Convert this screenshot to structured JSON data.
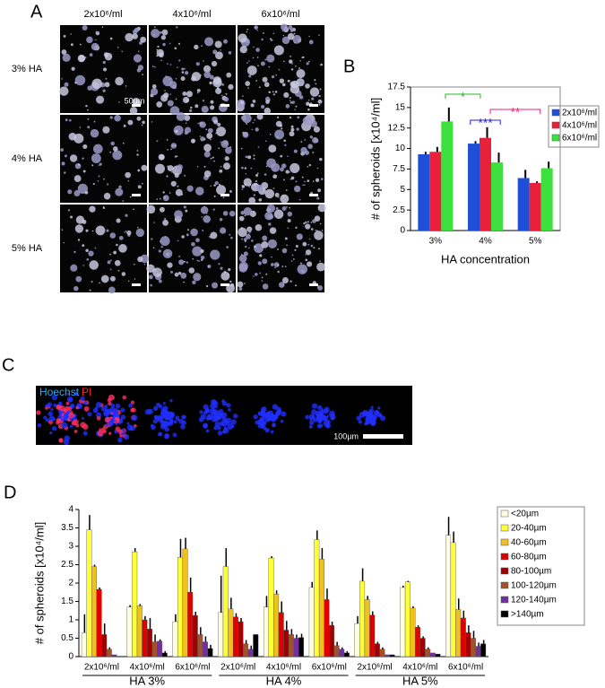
{
  "panel_a": {
    "label": "A",
    "columns": [
      "2x10⁶/ml",
      "4x10⁶/ml",
      "6x10⁶/ml"
    ],
    "rows": [
      "3% HA",
      "4% HA",
      "5% HA"
    ],
    "scale_bar": "50µm"
  },
  "panel_c": {
    "label": "C",
    "stains": [
      "Hoechst",
      "PI"
    ],
    "scale_bar": "100µm"
  },
  "chart_data": [
    {
      "type": "bar",
      "panel": "B",
      "ylabel": "# of spheroids [x10⁴/ml]",
      "xlabel": "HA concentration",
      "categories": [
        "3%",
        "4%",
        "5%"
      ],
      "series": [
        {
          "name": "2x10⁶/ml",
          "color": "#1f4fd8",
          "values": [
            9.3,
            10.6,
            6.4
          ],
          "errors": [
            0.3,
            0.3,
            1.0
          ]
        },
        {
          "name": "4x10⁶/ml",
          "color": "#e8203a",
          "values": [
            9.6,
            11.3,
            5.8
          ],
          "errors": [
            0.6,
            1.3,
            0.2
          ]
        },
        {
          "name": "6x10⁶/ml",
          "color": "#3ee03e",
          "values": [
            13.3,
            8.3,
            7.6
          ],
          "errors": [
            1.7,
            1.2,
            0.8
          ]
        }
      ],
      "ylim": [
        0,
        17.5
      ],
      "yticks": [
        0,
        2.5,
        5,
        7.5,
        10,
        12.5,
        15,
        17.5
      ],
      "annotations": [
        {
          "text": "*",
          "color": "#22bb22"
        },
        {
          "text": "***",
          "color": "#2222dd"
        },
        {
          "text": "**",
          "color": "#ee2277"
        }
      ]
    },
    {
      "type": "bar",
      "panel": "D",
      "ylabel": "# of spheroids [x10⁴/ml]",
      "categories": [
        "2x10⁶/ml",
        "4x10⁶/ml",
        "6x10⁶/ml",
        "2x10⁶/ml",
        "4x10⁶/ml",
        "6x10⁶/ml",
        "2x10⁶/ml",
        "4x10⁶/ml",
        "6x10⁶/ml"
      ],
      "groups": [
        "HA 3%",
        "HA 4%",
        "HA 5%"
      ],
      "series": [
        {
          "name": "<20µm",
          "color": "#fffde0",
          "values": [
            0.65,
            1.35,
            0.95,
            1.2,
            1.35,
            1.88,
            0.9,
            1.88,
            3.3
          ],
          "errors": [
            0.5,
            0.05,
            0.2,
            1.0,
            0.3,
            0.15,
            0.2,
            0.05,
            0.5
          ]
        },
        {
          "name": "20-40µm",
          "color": "#ffff33",
          "values": [
            3.45,
            2.85,
            2.7,
            2.45,
            2.68,
            3.18,
            2.05,
            2.03,
            3.1
          ],
          "errors": [
            0.4,
            0.1,
            0.5,
            0.5,
            0.05,
            0.25,
            0.35,
            0.03,
            0.3
          ]
        },
        {
          "name": "40-60µm",
          "color": "#f0c020",
          "values": [
            2.45,
            1.38,
            2.93,
            1.3,
            1.7,
            2.65,
            1.55,
            1.32,
            1.28
          ],
          "errors": [
            0.05,
            0.05,
            0.3,
            0.3,
            0.1,
            0.3,
            0.1,
            0.05,
            0.3
          ]
        },
        {
          "name": "60-80µm",
          "color": "#e00000",
          "values": [
            1.83,
            1.0,
            1.75,
            1.08,
            1.2,
            1.55,
            1.13,
            0.8,
            1.05
          ],
          "errors": [
            0.05,
            0.1,
            0.4,
            0.1,
            0.3,
            0.3,
            0.1,
            0.05,
            0.2
          ]
        },
        {
          "name": "80-100µm",
          "color": "#a00000",
          "values": [
            0.6,
            0.75,
            1.12,
            0.95,
            0.72,
            0.85,
            0.35,
            0.5,
            0.65
          ],
          "errors": [
            0.3,
            0.3,
            0.1,
            0.1,
            0.25,
            0.1,
            0.05,
            0.05,
            0.2
          ]
        },
        {
          "name": "100-120µm",
          "color": "#a0522d",
          "values": [
            0.2,
            0.4,
            0.6,
            0.35,
            0.6,
            0.3,
            0.2,
            0.2,
            0.5
          ],
          "errors": [
            0.05,
            0.2,
            0.2,
            0.1,
            0.15,
            0.1,
            0.05,
            0.05,
            0.2
          ]
        },
        {
          "name": "120-140µm",
          "color": "#7030a0",
          "values": [
            0.05,
            0.42,
            0.4,
            0.2,
            0.5,
            0.2,
            0.05,
            0.1,
            0.28
          ],
          "errors": [
            0,
            0.05,
            0.15,
            0.1,
            0.1,
            0.05,
            0,
            0,
            0.1
          ]
        },
        {
          "name": ">140µm",
          "color": "#000000",
          "values": [
            0,
            0.1,
            0.22,
            0.6,
            0.52,
            0.1,
            0.05,
            0.07,
            0.35
          ],
          "errors": [
            0,
            0.05,
            0.1,
            0,
            0.1,
            0.05,
            0,
            0,
            0.1
          ]
        }
      ],
      "ylim": [
        0,
        4
      ],
      "yticks": [
        0,
        0.5,
        1,
        1.5,
        2,
        2.5,
        3,
        3.5,
        4
      ]
    }
  ]
}
